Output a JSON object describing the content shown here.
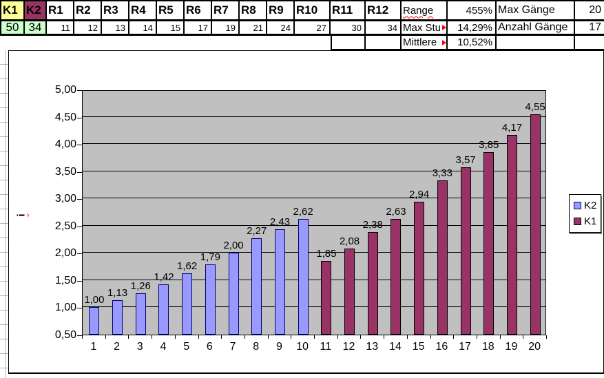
{
  "colors": {
    "k1_header_bg": "#FFFF99",
    "k2_header_bg": "#993366",
    "k_value_bg": "#CCFFCC",
    "indicator_red": "#FF0000"
  },
  "table": {
    "k1_header": "K1",
    "k2_header": "K2",
    "k1_value": "50",
    "k2_value": "34",
    "gear_headers": [
      "R1",
      "R2",
      "R3",
      "R4",
      "R5",
      "R6",
      "R7",
      "R8",
      "R9",
      "R10",
      "R11",
      "R12"
    ],
    "gear_values": [
      "11",
      "12",
      "13",
      "14",
      "15",
      "17",
      "19",
      "21",
      "24",
      "27",
      "30",
      "34"
    ],
    "stats": [
      {
        "label": "Range",
        "value": "455%",
        "label2": "Max Gänge",
        "value2": "20",
        "misspelled": true,
        "truncated": false
      },
      {
        "label": "Max Stu",
        "value": "14,29%",
        "label2": "Anzahl Gänge",
        "value2": "17",
        "misspelled": false,
        "truncated": true
      },
      {
        "label": "Mittlere",
        "value": "10,52%",
        "label2": "",
        "value2": "",
        "misspelled": false,
        "truncated": true
      }
    ]
  },
  "chart_data": {
    "type": "bar",
    "title": "",
    "xlabel": "",
    "ylabel": "i",
    "categories": [
      "1",
      "2",
      "3",
      "4",
      "5",
      "6",
      "7",
      "8",
      "9",
      "10",
      "11",
      "12",
      "13",
      "14",
      "15",
      "16",
      "17",
      "18",
      "19",
      "20"
    ],
    "ylim": [
      0.5,
      5.0
    ],
    "ytick_step": 0.5,
    "ytick_labels": [
      "0,50",
      "1,00",
      "1,50",
      "2,00",
      "2,50",
      "3,00",
      "3,50",
      "4,00",
      "4,50",
      "5,00"
    ],
    "grid": true,
    "plot_bg": "#C0C0C0",
    "legend_position": "right",
    "series": [
      {
        "name": "K2",
        "color": "#9999FF",
        "border_color": "#000066",
        "values": [
          1.0,
          1.13,
          1.26,
          1.42,
          1.62,
          1.79,
          2.0,
          2.27,
          2.43,
          2.62,
          null,
          null,
          null,
          null,
          null,
          null,
          null,
          null,
          null,
          null
        ],
        "labels": [
          "1,00",
          "1,13",
          "1,26",
          "1,42",
          "1,62",
          "1,79",
          "2,00",
          "2,27",
          "2,43",
          "2,62",
          null,
          null,
          null,
          null,
          null,
          null,
          null,
          null,
          null,
          null
        ]
      },
      {
        "name": "K1",
        "color": "#993366",
        "border_color": "#000000",
        "values": [
          null,
          null,
          null,
          null,
          null,
          null,
          null,
          null,
          null,
          null,
          1.85,
          2.08,
          2.38,
          2.63,
          2.94,
          3.33,
          3.57,
          3.85,
          4.17,
          4.55
        ],
        "labels": [
          null,
          null,
          null,
          null,
          null,
          null,
          null,
          null,
          null,
          null,
          "1,85",
          "2,08",
          "2,38",
          "2,63",
          "2,94",
          "3,33",
          "3,57",
          "3,85",
          "4,17",
          "4,55"
        ]
      }
    ]
  }
}
